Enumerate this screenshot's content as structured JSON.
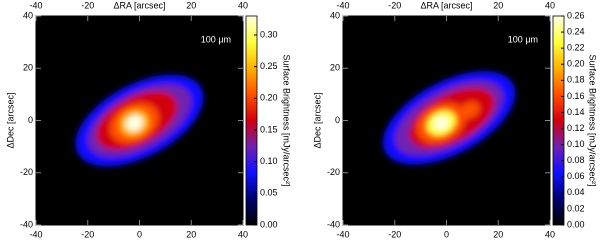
{
  "chart_data": [
    {
      "type": "heatmap",
      "annotation": "100 μm",
      "xlabel": "ΔRA [arcsec]",
      "ylabel": "ΔDec [arcsec]",
      "colorbar_label": "Surface Brightness [mJy/arcsec²]",
      "xlim": [
        -40,
        40
      ],
      "ylim": [
        -40,
        40
      ],
      "xticks": [
        -40,
        -20,
        0,
        20,
        40
      ],
      "xticks_top": [
        -40,
        -20,
        20,
        40
      ],
      "yticks": [
        -40,
        -20,
        0,
        20,
        40
      ],
      "clim": [
        0,
        0.33
      ],
      "cticks": [
        {
          "value": 0,
          "label": "0.00"
        },
        0.05,
        {
          "value": 0.1,
          "label": "0.10"
        },
        0.15,
        {
          "value": 0.2,
          "label": "0.20"
        },
        0.25,
        {
          "value": 0.3,
          "label": "0.30"
        }
      ],
      "colormap": [
        "#000000",
        "#00006e",
        "#1010ff",
        "#7020b0",
        "#d00010",
        "#ff5000",
        "#ffb000",
        "#ffff40",
        "#ffffe0"
      ]
    },
    {
      "type": "heatmap",
      "annotation": "100 μm",
      "xlabel": "ΔRA [arcsec]",
      "ylabel": "ΔDec [arcsec]",
      "colorbar_label": "Surface Brightness [mJy/arcsec²]",
      "xlim": [
        -40,
        40
      ],
      "ylim": [
        -40,
        40
      ],
      "xticks": [
        -40,
        -20,
        0,
        20,
        40
      ],
      "xticks_top": [
        -40,
        -20,
        20,
        40
      ],
      "yticks": [
        -40,
        -20,
        0,
        20,
        40
      ],
      "clim": [
        0,
        0.26
      ],
      "cticks": [
        {
          "value": 0,
          "label": "0.00"
        },
        0.02,
        0.04,
        0.06,
        0.08,
        {
          "value": 0.1,
          "label": "0.10"
        },
        0.12,
        0.14,
        0.16,
        0.18,
        {
          "value": 0.2,
          "label": "0.20"
        },
        0.22,
        0.24,
        0.26
      ],
      "colormap": [
        "#000000",
        "#00006e",
        "#1010ff",
        "#7020b0",
        "#d00010",
        "#ff5000",
        "#ffb000",
        "#ffff40",
        "#ffffe0"
      ]
    }
  ]
}
